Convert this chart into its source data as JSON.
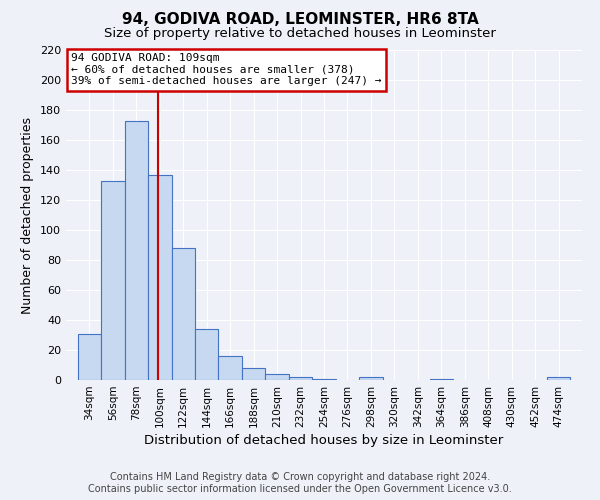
{
  "title": "94, GODIVA ROAD, LEOMINSTER, HR6 8TA",
  "subtitle": "Size of property relative to detached houses in Leominster",
  "xlabel": "Distribution of detached houses by size in Leominster",
  "ylabel": "Number of detached properties",
  "footer_line1": "Contains HM Land Registry data © Crown copyright and database right 2024.",
  "footer_line2": "Contains public sector information licensed under the Open Government Licence v3.0.",
  "bin_labels": [
    "34sqm",
    "56sqm",
    "78sqm",
    "100sqm",
    "122sqm",
    "144sqm",
    "166sqm",
    "188sqm",
    "210sqm",
    "232sqm",
    "254sqm",
    "276sqm",
    "298sqm",
    "320sqm",
    "342sqm",
    "364sqm",
    "386sqm",
    "408sqm",
    "430sqm",
    "452sqm",
    "474sqm"
  ],
  "bin_edges": [
    34,
    56,
    78,
    100,
    122,
    144,
    166,
    188,
    210,
    232,
    254,
    276,
    298,
    320,
    342,
    364,
    386,
    408,
    430,
    452,
    474
  ],
  "bar_values": [
    31,
    133,
    173,
    137,
    88,
    34,
    16,
    8,
    4,
    2,
    1,
    0,
    2,
    0,
    0,
    1,
    0,
    0,
    0,
    0,
    2
  ],
  "bar_color": "#c6d9f1",
  "bar_edge_color": "#4472c4",
  "vline_x": 109,
  "vline_color": "#cc0000",
  "annotation_title": "94 GODIVA ROAD: 109sqm",
  "annotation_line1": "← 60% of detached houses are smaller (378)",
  "annotation_line2": "39% of semi-detached houses are larger (247) →",
  "annotation_box_color": "#cc0000",
  "ylim": [
    0,
    220
  ],
  "yticks": [
    0,
    20,
    40,
    60,
    80,
    100,
    120,
    140,
    160,
    180,
    200,
    220
  ],
  "background_color": "#eef2f8",
  "grid_color": "#ffffff",
  "title_fontsize": 11,
  "subtitle_fontsize": 9.5,
  "axis_label_fontsize": 9,
  "tick_fontsize": 8,
  "footer_fontsize": 7
}
